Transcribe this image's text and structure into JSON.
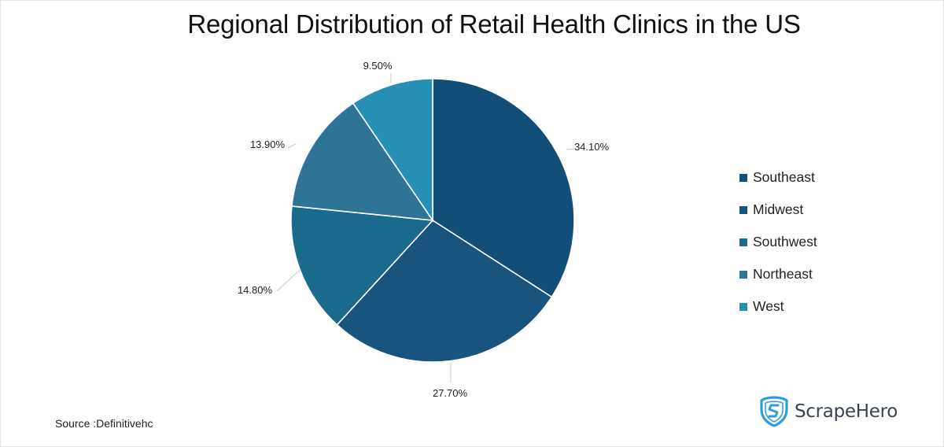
{
  "title": "Regional Distribution of Retail Health Clinics in the US",
  "source": "Source :Definitivehc",
  "brand": {
    "name": "ScrapeHero",
    "icon": "shield-s-logo-icon",
    "color": "#2f9ed8"
  },
  "legend": [
    {
      "label": "Southeast",
      "color": "#114e78"
    },
    {
      "label": "Midwest",
      "color": "#19547e"
    },
    {
      "label": "Southwest",
      "color": "#1a6a8d"
    },
    {
      "label": "Northeast",
      "color": "#2e7496"
    },
    {
      "label": "West",
      "color": "#2690b5"
    }
  ],
  "chart_data": {
    "type": "pie",
    "title": "Regional Distribution of Retail Health Clinics in the US",
    "categories": [
      "Southeast",
      "Midwest",
      "Southwest",
      "Northeast",
      "West"
    ],
    "values": [
      34.1,
      27.7,
      14.8,
      13.9,
      9.5
    ],
    "labels": [
      "34.10%",
      "27.70%",
      "14.80%",
      "13.90%",
      "9.50%"
    ],
    "colors": [
      "#114e78",
      "#19547e",
      "#1a6a8d",
      "#2e7496",
      "#2690b5"
    ],
    "start_angle": "12 o'clock, clockwise",
    "legend_position": "right",
    "source": "Source :Definitivehc"
  }
}
